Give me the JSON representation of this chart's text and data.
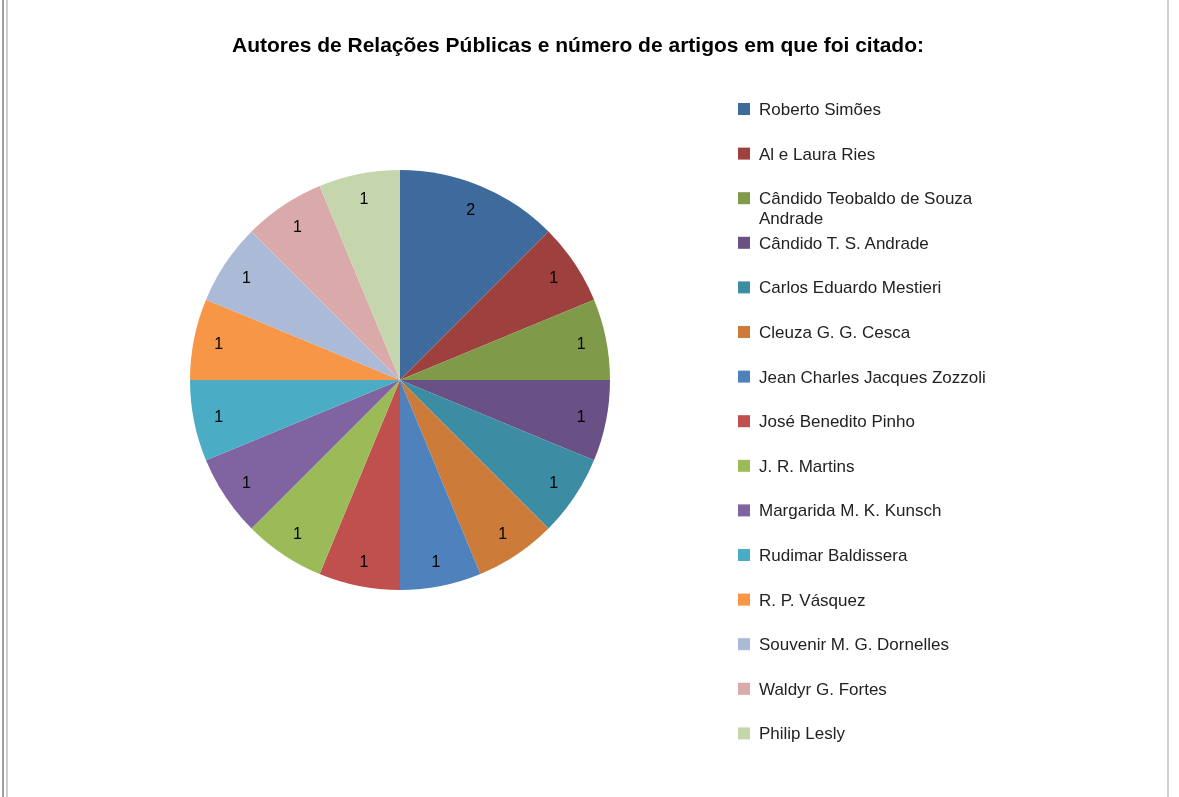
{
  "chart_data": {
    "type": "pie",
    "title": "Autores de Relações Públicas e número de artigos em que foi citado:",
    "categories": [
      "Roberto Simões",
      "Al e Laura Ries",
      "Cândido Teobaldo de Souza Andrade",
      "Cândido T. S. Andrade",
      "Carlos Eduardo Mestieri",
      "Cleuza G. G. Cesca",
      "Jean Charles Jacques Zozzoli",
      "José Benedito Pinho",
      "J. R. Martins",
      "Margarida M. K. Kunsch",
      "Rudimar Baldissera",
      "R. P. Vásquez",
      "Souvenir M. G. Dornelles",
      "Waldyr G. Fortes",
      "Philip Lesly"
    ],
    "values": [
      2,
      1,
      1,
      1,
      1,
      1,
      1,
      1,
      1,
      1,
      1,
      1,
      1,
      1,
      1
    ],
    "colors": [
      "#3e6a9c",
      "#9e413e",
      "#7f9a48",
      "#695185",
      "#3c8da3",
      "#cc7b38",
      "#4f81bd",
      "#c0504d",
      "#9bbb59",
      "#8064a2",
      "#4bacc6",
      "#f79646",
      "#aabad7",
      "#d9aaa9",
      "#c6d6ac"
    ],
    "data_labels": true,
    "legend": "right"
  }
}
